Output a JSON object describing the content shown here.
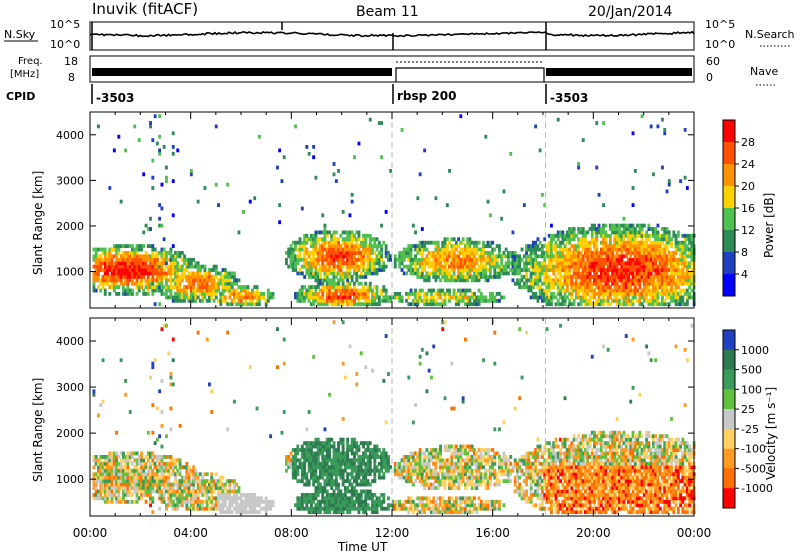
{
  "header": {
    "station": "Inuvik (fitACF)",
    "beam": "Beam 11",
    "date": "20/Jan/2014"
  },
  "strips": {
    "nsky": {
      "label": "N.Sky",
      "tick_top": "10^5",
      "tick_bottom": "10^0",
      "right_tick_top": "10^5",
      "right_tick_bottom": "10^0",
      "right_label": "N.Search"
    },
    "freq": {
      "label_line1": "Freq.",
      "label_line2": "[MHz]",
      "tick_top": "18",
      "tick_bottom": "8",
      "right_tick_top": "60",
      "right_tick_bottom": "0",
      "right_label": "Nave"
    },
    "cpid": {
      "label": "CPID",
      "segments": [
        "-3503",
        "rbsp 200",
        "-3503"
      ]
    }
  },
  "colors": {
    "power_scale": [
      "#0000ff",
      "#2040c0",
      "#2e8b57",
      "#50c050",
      "#ffd000",
      "#ff9000",
      "#ff5000",
      "#ff0000"
    ],
    "velocity_scale": [
      "#2040c0",
      "#2e7b50",
      "#3a9a5a",
      "#60c040",
      "#c8c8c8",
      "#ffd060",
      "#ff9a20",
      "#ff7000",
      "#ff0000"
    ]
  },
  "chart_data": [
    {
      "type": "heatmap",
      "panel": "power",
      "xlabel": "Time UT",
      "ylabel": "Slant Range [km]",
      "x_ticks": [
        "00:00",
        "04:00",
        "08:00",
        "12:00",
        "16:00",
        "20:00",
        "00:00"
      ],
      "y_ticks": [
        "1000",
        "2000",
        "3000",
        "4000"
      ],
      "ylim": [
        200,
        4500
      ],
      "colorbar_label": "Power [dB]",
      "colorbar_ticks": [
        "4",
        "8",
        "12",
        "16",
        "20",
        "24",
        "28"
      ],
      "mode_change_times_ut": [
        12.0,
        18.1
      ]
    },
    {
      "type": "heatmap",
      "panel": "velocity",
      "xlabel": "Time UT",
      "ylabel": "Slant Range [km]",
      "x_ticks": [
        "00:00",
        "04:00",
        "08:00",
        "12:00",
        "16:00",
        "20:00",
        "00:00"
      ],
      "y_ticks": [
        "1000",
        "2000",
        "3000",
        "4000"
      ],
      "ylim": [
        200,
        4500
      ],
      "colorbar_label": "Velocity [m s⁻¹]",
      "colorbar_ticks": [
        "1000",
        "500",
        "100",
        "25",
        "-25",
        "-100",
        "-500",
        "-1000"
      ],
      "mode_change_times_ut": [
        12.0,
        18.1
      ]
    }
  ]
}
